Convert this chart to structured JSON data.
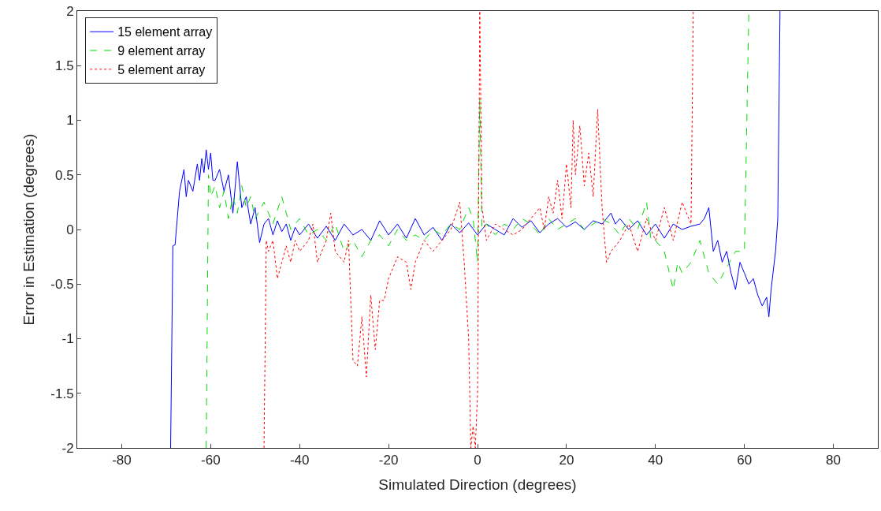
{
  "chart_data": {
    "type": "line",
    "xlabel": "Simulated Direction (degrees)",
    "ylabel": "Error in Estimation (degrees)",
    "xlim": [
      -90,
      90
    ],
    "xticks": [
      -80,
      -60,
      -40,
      -20,
      0,
      20,
      40,
      60,
      80
    ],
    "ylim": [
      -2,
      2
    ],
    "yticks": [
      -2,
      -1.5,
      -1,
      -0.5,
      0,
      0.5,
      1,
      1.5,
      2
    ],
    "legend": "top left",
    "marker": "none",
    "series": [
      {
        "name": "15 element array",
        "color": "#0000ff",
        "line_style": "solid",
        "x": [
          -69,
          -68.5,
          -68,
          -67,
          -66,
          -65.5,
          -65,
          -64,
          -63,
          -62.5,
          -62,
          -61.5,
          -61,
          -60.5,
          -60,
          -59.5,
          -59,
          -58,
          -57,
          -56,
          -55,
          -54,
          -53,
          -52,
          -51,
          -50,
          -49,
          -48,
          -47,
          -46,
          -45,
          -44,
          -43,
          -42,
          -41,
          -40,
          -38,
          -36,
          -34,
          -32,
          -30,
          -28,
          -26,
          -24,
          -22,
          -20,
          -18,
          -16,
          -14,
          -12,
          -10,
          -8,
          -6,
          -4,
          -2,
          0,
          2,
          4,
          6,
          8,
          10,
          12,
          14,
          16,
          18,
          20,
          22,
          24,
          26,
          28,
          30,
          31,
          32,
          34,
          36,
          38,
          40,
          42,
          44,
          46,
          48,
          50,
          51,
          52,
          53,
          54,
          55,
          56,
          57,
          58,
          59,
          60,
          61,
          62,
          63,
          64,
          65,
          65.5,
          66,
          67,
          67.5,
          68
        ],
        "values": [
          -2,
          -0.15,
          -0.14,
          0.35,
          0.55,
          0.3,
          0.45,
          0.35,
          0.6,
          0.45,
          0.65,
          0.52,
          0.73,
          0.55,
          0.7,
          0.45,
          0.45,
          0.55,
          0.35,
          0.5,
          0.15,
          0.62,
          0.2,
          0.3,
          0.05,
          0.2,
          -0.12,
          0.05,
          0.1,
          -0.05,
          0.08,
          -0.02,
          0.05,
          -0.1,
          0.02,
          -0.05,
          0.05,
          -0.08,
          0.03,
          -0.1,
          0.05,
          -0.05,
          0.0,
          -0.1,
          0.08,
          -0.05,
          0.05,
          -0.08,
          0.1,
          -0.05,
          0.02,
          -0.1,
          0.05,
          -0.03,
          0.06,
          -0.05,
          0.05,
          0.0,
          -0.05,
          0.1,
          0.02,
          0.08,
          -0.03,
          0.05,
          0.1,
          0.02,
          0.07,
          0.0,
          0.08,
          0.05,
          0.15,
          0.05,
          0.1,
          0.0,
          0.08,
          -0.05,
          0.05,
          -0.08,
          0.05,
          0.0,
          0.03,
          0.05,
          0.1,
          0.2,
          -0.2,
          -0.1,
          -0.3,
          -0.2,
          -0.4,
          -0.55,
          -0.3,
          -0.4,
          -0.5,
          -0.45,
          -0.6,
          -0.7,
          -0.62,
          -0.8,
          -0.55,
          -0.2,
          0.1,
          2
        ]
      },
      {
        "name": "9 element array",
        "color": "#00dd00",
        "line_style": "dashed",
        "x": [
          -61,
          -60.5,
          -60,
          -59,
          -58,
          -57,
          -56,
          -55,
          -54,
          -53,
          -52,
          -51,
          -50,
          -48,
          -46,
          -44,
          -42,
          -40,
          -38,
          -36,
          -34,
          -32,
          -30,
          -28,
          -26,
          -24,
          -22,
          -20,
          -18,
          -16,
          -14,
          -12,
          -10,
          -8,
          -6,
          -4,
          -2,
          -1,
          0,
          0.5,
          1,
          2,
          4,
          6,
          8,
          10,
          12,
          14,
          16,
          18,
          20,
          22,
          24,
          26,
          28,
          30,
          32,
          34,
          36,
          38,
          39,
          40,
          42,
          44,
          45,
          46,
          48,
          50,
          52,
          54,
          56,
          58,
          60,
          61
        ],
        "values": [
          -2,
          0.5,
          0.3,
          0.4,
          0.2,
          0.35,
          0.1,
          0.3,
          0.15,
          0.4,
          0.2,
          0.3,
          0.1,
          0.25,
          0.05,
          0.3,
          0.0,
          0.1,
          -0.05,
          0.0,
          -0.1,
          0.05,
          -0.2,
          -0.1,
          -0.25,
          -0.1,
          -0.05,
          -0.15,
          0.0,
          -0.1,
          -0.05,
          -0.1,
          0.0,
          -0.05,
          0.05,
          0.0,
          0.2,
          0.1,
          -0.3,
          1.2,
          0.0,
          0.05,
          -0.05,
          0.05,
          0.0,
          0.1,
          0.05,
          -0.05,
          0.1,
          0.0,
          0.05,
          0.1,
          0.0,
          0.05,
          0.1,
          0.05,
          -0.05,
          0.1,
          0.0,
          0.25,
          -0.1,
          -0.1,
          -0.2,
          -0.55,
          -0.3,
          -0.4,
          -0.3,
          -0.1,
          -0.4,
          -0.5,
          -0.35,
          -0.2,
          -0.2,
          2
        ]
      },
      {
        "name": "5 element array",
        "color": "#ff0000",
        "line_style": "dotted",
        "x": [
          -48,
          -47.5,
          -47,
          -46,
          -45,
          -44,
          -43,
          -42,
          -41,
          -40,
          -38,
          -37,
          -36,
          -34,
          -33,
          -32,
          -30,
          -29,
          -28,
          -27,
          -26,
          -25,
          -24,
          -23,
          -22,
          -21,
          -20,
          -18,
          -16,
          -15,
          -14,
          -12,
          -10,
          -8,
          -6,
          -4,
          -3,
          -2,
          -1.5,
          -1,
          -0.5,
          0,
          0.5,
          1,
          2,
          4,
          6,
          8,
          10,
          12,
          14,
          15,
          16,
          17,
          18,
          19,
          20,
          21,
          21.5,
          22,
          23,
          24,
          25,
          26,
          27,
          28,
          29,
          30,
          32,
          34,
          36,
          38,
          40,
          42,
          44,
          46,
          48,
          48.5
        ],
        "values": [
          -2,
          -0.1,
          -0.2,
          -0.1,
          -0.45,
          -0.3,
          -0.15,
          -0.3,
          -0.1,
          -0.2,
          -0.1,
          0.05,
          -0.3,
          -0.1,
          0.15,
          -0.2,
          -0.3,
          -0.1,
          -1.2,
          -1.25,
          -0.8,
          -1.35,
          -0.6,
          -1.1,
          -0.65,
          -0.65,
          -0.45,
          -0.25,
          -0.3,
          -0.55,
          -0.3,
          -0.1,
          -0.2,
          -0.1,
          0.0,
          0.25,
          -0.3,
          -1.0,
          -2,
          -1.8,
          -2,
          -1.5,
          2,
          0.2,
          -0.1,
          0.05,
          0.0,
          -0.05,
          0.0,
          0.1,
          0.2,
          0.0,
          0.3,
          0.15,
          0.45,
          0.1,
          0.6,
          0.2,
          1.0,
          0.5,
          0.95,
          0.4,
          0.7,
          0.3,
          1.1,
          0.2,
          -0.3,
          -0.2,
          -0.1,
          0.05,
          -0.2,
          0.1,
          -0.1,
          0.2,
          -0.1,
          0.25,
          0.05,
          2
        ]
      }
    ]
  }
}
